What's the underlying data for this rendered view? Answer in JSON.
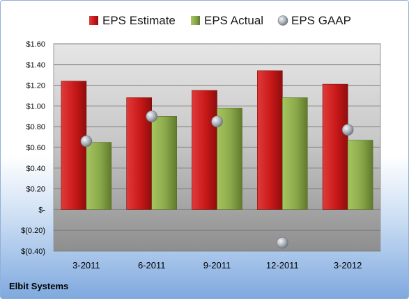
{
  "chart_data": {
    "type": "bar",
    "categories": [
      "3-2011",
      "6-2011",
      "9-2011",
      "12-2011",
      "3-2012"
    ],
    "series": [
      {
        "name": "EPS Estimate",
        "type": "bar",
        "color": "#cc1c1c",
        "values": [
          1.24,
          1.08,
          1.15,
          1.34,
          1.21
        ]
      },
      {
        "name": "EPS Actual",
        "type": "bar",
        "color": "#8fb04a",
        "values": [
          0.65,
          0.9,
          0.98,
          1.08,
          0.67
        ]
      },
      {
        "name": "EPS GAAP",
        "type": "scatter",
        "color": "#a9afb8",
        "values": [
          0.66,
          0.9,
          0.85,
          -0.32,
          0.77
        ]
      }
    ],
    "yticks": [
      {
        "value": 1.6,
        "label": "$1.60"
      },
      {
        "value": 1.4,
        "label": "$1.40"
      },
      {
        "value": 1.2,
        "label": "$1.20"
      },
      {
        "value": 1.0,
        "label": "$1.00"
      },
      {
        "value": 0.8,
        "label": "$0.80"
      },
      {
        "value": 0.6,
        "label": "$0.60"
      },
      {
        "value": 0.4,
        "label": "$0.40"
      },
      {
        "value": 0.2,
        "label": "$0.20"
      },
      {
        "value": 0.0,
        "label": "$-"
      },
      {
        "value": -0.2,
        "label": "$(0.20)"
      },
      {
        "value": -0.4,
        "label": "$(0.40)"
      }
    ],
    "ylim": [
      -0.4,
      1.6
    ],
    "grid": true,
    "legend_position": "top",
    "source_label": "Elbit Systems"
  }
}
